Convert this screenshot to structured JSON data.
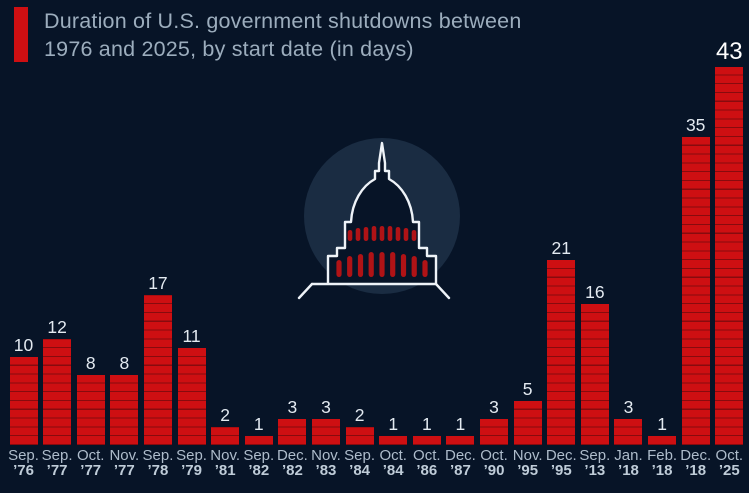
{
  "page": {
    "background": "#071427"
  },
  "header": {
    "title_line1": "Duration of U.S. government shutdowns between",
    "title_line2": "1976 and 2025, by start date (in days)",
    "accent_color": "#ce0f12"
  },
  "icons": {
    "capitol": "capitol-building-icon",
    "capitol_circle_color": "#1a2c42",
    "capitol_outline_color": "#eef3f8",
    "capitol_column_color": "#b01316"
  },
  "chart_data": {
    "type": "bar",
    "title": "Duration of U.S. government shutdowns between 1976 and 2025, by start date (in days)",
    "unit": "days",
    "ylim": [
      0,
      43
    ],
    "grid": false,
    "legend": null,
    "bar_color": "#ce0f12",
    "bar_segment_line_color": "#870b0e",
    "value_label_color": "#e3eaf1",
    "highlight_value_color": "#ffffff",
    "categories": [
      "Sep. ’76",
      "Sep. ’77",
      "Oct. ’77",
      "Nov. ’77",
      "Sep. ’78",
      "Sep. ’79",
      "Nov. ’81",
      "Sep. ’82",
      "Dec. ’82",
      "Nov. ’83",
      "Sep. ’84",
      "Oct. ’84",
      "Oct. ’86",
      "Dec. ’87",
      "Oct. ’90",
      "Nov. ’95",
      "Dec. ’95",
      "Sep. ’13",
      "Jan. ’18",
      "Feb. ’18",
      "Dec. ’18",
      "Oct. ’25"
    ],
    "values": [
      10,
      12,
      8,
      8,
      17,
      11,
      2,
      1,
      3,
      3,
      2,
      1,
      1,
      1,
      3,
      5,
      21,
      16,
      3,
      1,
      35,
      43
    ],
    "points": [
      {
        "month": "Sep.",
        "year": "’76",
        "days": 10
      },
      {
        "month": "Sep.",
        "year": "’77",
        "days": 12
      },
      {
        "month": "Oct.",
        "year": "’77",
        "days": 8
      },
      {
        "month": "Nov.",
        "year": "’77",
        "days": 8
      },
      {
        "month": "Sep.",
        "year": "’78",
        "days": 17
      },
      {
        "month": "Sep.",
        "year": "’79",
        "days": 11
      },
      {
        "month": "Nov.",
        "year": "’81",
        "days": 2
      },
      {
        "month": "Sep.",
        "year": "’82",
        "days": 1
      },
      {
        "month": "Dec.",
        "year": "’82",
        "days": 3
      },
      {
        "month": "Nov.",
        "year": "’83",
        "days": 3
      },
      {
        "month": "Sep.",
        "year": "’84",
        "days": 2
      },
      {
        "month": "Oct.",
        "year": "’84",
        "days": 1
      },
      {
        "month": "Oct.",
        "year": "’86",
        "days": 1
      },
      {
        "month": "Dec.",
        "year": "’87",
        "days": 1
      },
      {
        "month": "Oct.",
        "year": "’90",
        "days": 3
      },
      {
        "month": "Nov.",
        "year": "’95",
        "days": 5
      },
      {
        "month": "Dec.",
        "year": "’95",
        "days": 21
      },
      {
        "month": "Sep.",
        "year": "’13",
        "days": 16
      },
      {
        "month": "Jan.",
        "year": "’18",
        "days": 3
      },
      {
        "month": "Feb.",
        "year": "’18",
        "days": 1
      },
      {
        "month": "Dec.",
        "year": "’18",
        "days": 35
      },
      {
        "month": "Oct.",
        "year": "’25",
        "days": 43,
        "highlight": true
      }
    ]
  }
}
